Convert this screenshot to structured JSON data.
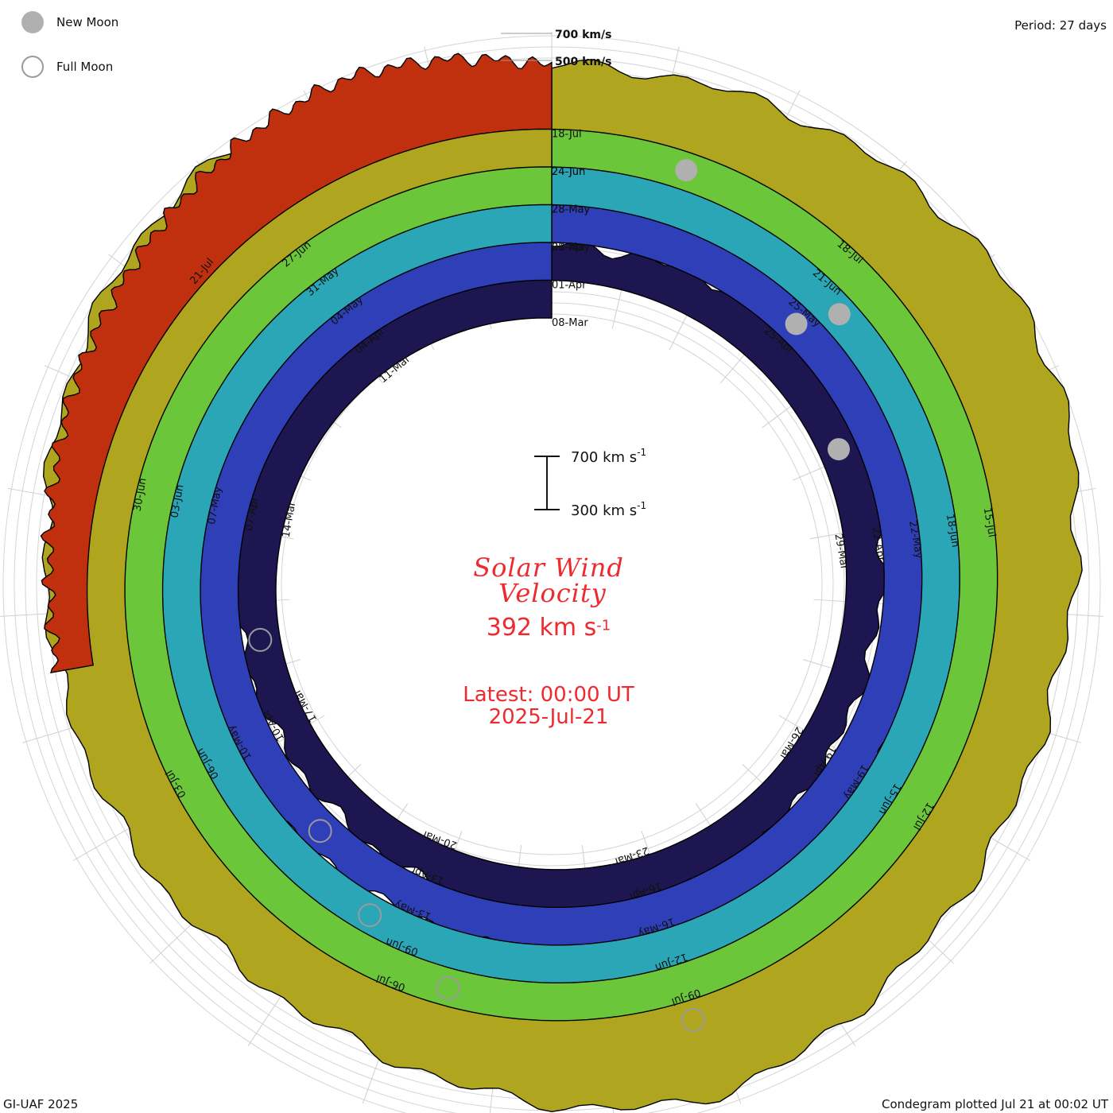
{
  "legend": {
    "new_moon": "New Moon",
    "full_moon": "Full Moon",
    "new_moon_color": "#b0b0b0",
    "full_moon_color": "#9a9a9a"
  },
  "period_label": "Period: 27 days",
  "reference_speeds": {
    "upper": "700 km/s",
    "lower": "500 km/s"
  },
  "scale_bar": {
    "top_label": "700 km s",
    "bottom_label": "300 km s",
    "exp": "-1"
  },
  "center": {
    "title_line1": "Solar Wind",
    "title_line2": "Velocity",
    "speed_value": "392 km s",
    "speed_exp": "-1",
    "latest_line1": "Latest: 00:00 UT",
    "latest_line2": "2025-Jul-21"
  },
  "footer": {
    "left": "GI-UAF 2025",
    "right": "Condegram plotted Jul 21 at 00:02 UT"
  },
  "chart_data": {
    "type": "area",
    "subtype": "condegram (spiral time series)",
    "title": "Solar Wind Velocity",
    "period_days": 27,
    "units": "km s-1",
    "latest_value": 392,
    "latest_time": "2025-Jul-21 00:00 UT",
    "reference_circles_kms": [
      500,
      700
    ],
    "scale_bar_kms": [
      300,
      700
    ],
    "start_date": "08-Mar",
    "end_date": "21-Jul",
    "series": [
      {
        "turn": 1,
        "color": "#1d1650",
        "date_labels": [
          "08-Mar",
          "11-Mar",
          "14-Mar",
          "17-Mar",
          "20-Mar",
          "23-Mar",
          "26-Mar",
          "29-Mar"
        ],
        "speed": [
          420,
          470,
          560,
          600,
          540,
          500,
          480,
          460,
          430,
          410,
          400,
          390,
          380,
          380,
          390,
          400,
          430,
          460,
          520,
          480,
          440,
          420,
          400,
          390,
          380,
          380,
          390,
          400,
          420,
          450,
          470,
          450,
          420,
          400,
          390,
          390
        ]
      },
      {
        "turn": 2,
        "color": "#2e3fb8",
        "date_labels": [
          "01-Apr",
          "04-Apr",
          "07-Apr",
          "10-Apr",
          "13-Apr",
          "16-Apr",
          "19-Apr",
          "22-Apr",
          "25-Apr",
          "28-Apr"
        ],
        "speed": [
          420,
          470,
          540,
          600,
          620,
          620,
          580,
          540,
          500,
          470,
          450,
          430,
          420,
          410,
          400,
          400,
          410,
          430,
          470,
          500,
          480,
          460,
          440,
          430,
          420,
          430,
          470,
          520,
          580,
          640,
          600,
          550,
          500,
          470,
          450,
          430
        ]
      },
      {
        "turn": 3,
        "color": "#2aa6b6",
        "date_labels": [
          "01-May",
          "04-May",
          "07-May",
          "10-May",
          "13-May",
          "16-May",
          "19-May",
          "22-May",
          "25-May",
          "28-May"
        ],
        "speed": [
          440,
          480,
          560,
          640,
          660,
          640,
          600,
          560,
          520,
          490,
          470,
          460,
          450,
          440,
          440,
          440,
          460,
          500,
          560,
          600,
          570,
          530,
          500,
          480,
          470,
          470,
          490,
          540,
          600,
          620,
          600,
          560,
          520,
          490,
          470,
          460
        ]
      },
      {
        "turn": 4,
        "color": "#6cc63a",
        "date_labels": [
          "28-May",
          "31-May",
          "03-Jun",
          "06-Jun",
          "09-Jun",
          "12-Jun",
          "15-Jun",
          "18-Jun",
          "21-Jun",
          "24-Jun"
        ],
        "speed": [
          460,
          520,
          600,
          660,
          690,
          680,
          640,
          600,
          560,
          530,
          510,
          500,
          490,
          480,
          480,
          480,
          500,
          540,
          590,
          620,
          600,
          570,
          540,
          520,
          510,
          510,
          530,
          570,
          610,
          630,
          610,
          580,
          550,
          520,
          500,
          490
        ]
      },
      {
        "turn": 5,
        "color": "#b0a51e",
        "date_labels": [
          "24-Jun",
          "27-Jun",
          "30-Jun",
          "03-Jul",
          "06-Jul",
          "09-Jul",
          "12-Jul",
          "15-Jul",
          "18-Jul"
        ],
        "speed": [
          480,
          560,
          640,
          700,
          720,
          700,
          660,
          620,
          580,
          550,
          530,
          510,
          500,
          490,
          490,
          500,
          520,
          560,
          600,
          640,
          620,
          580,
          550,
          530,
          520,
          520,
          540,
          580,
          620,
          640,
          620,
          590,
          560,
          530,
          510,
          500
        ]
      },
      {
        "turn": 6,
        "color": "#c0300f",
        "date_labels": [
          "18-Jul",
          "21-Jul"
        ],
        "speed": [
          500,
          560,
          600,
          580,
          540,
          500,
          470,
          430,
          400,
          392
        ]
      }
    ]
  }
}
